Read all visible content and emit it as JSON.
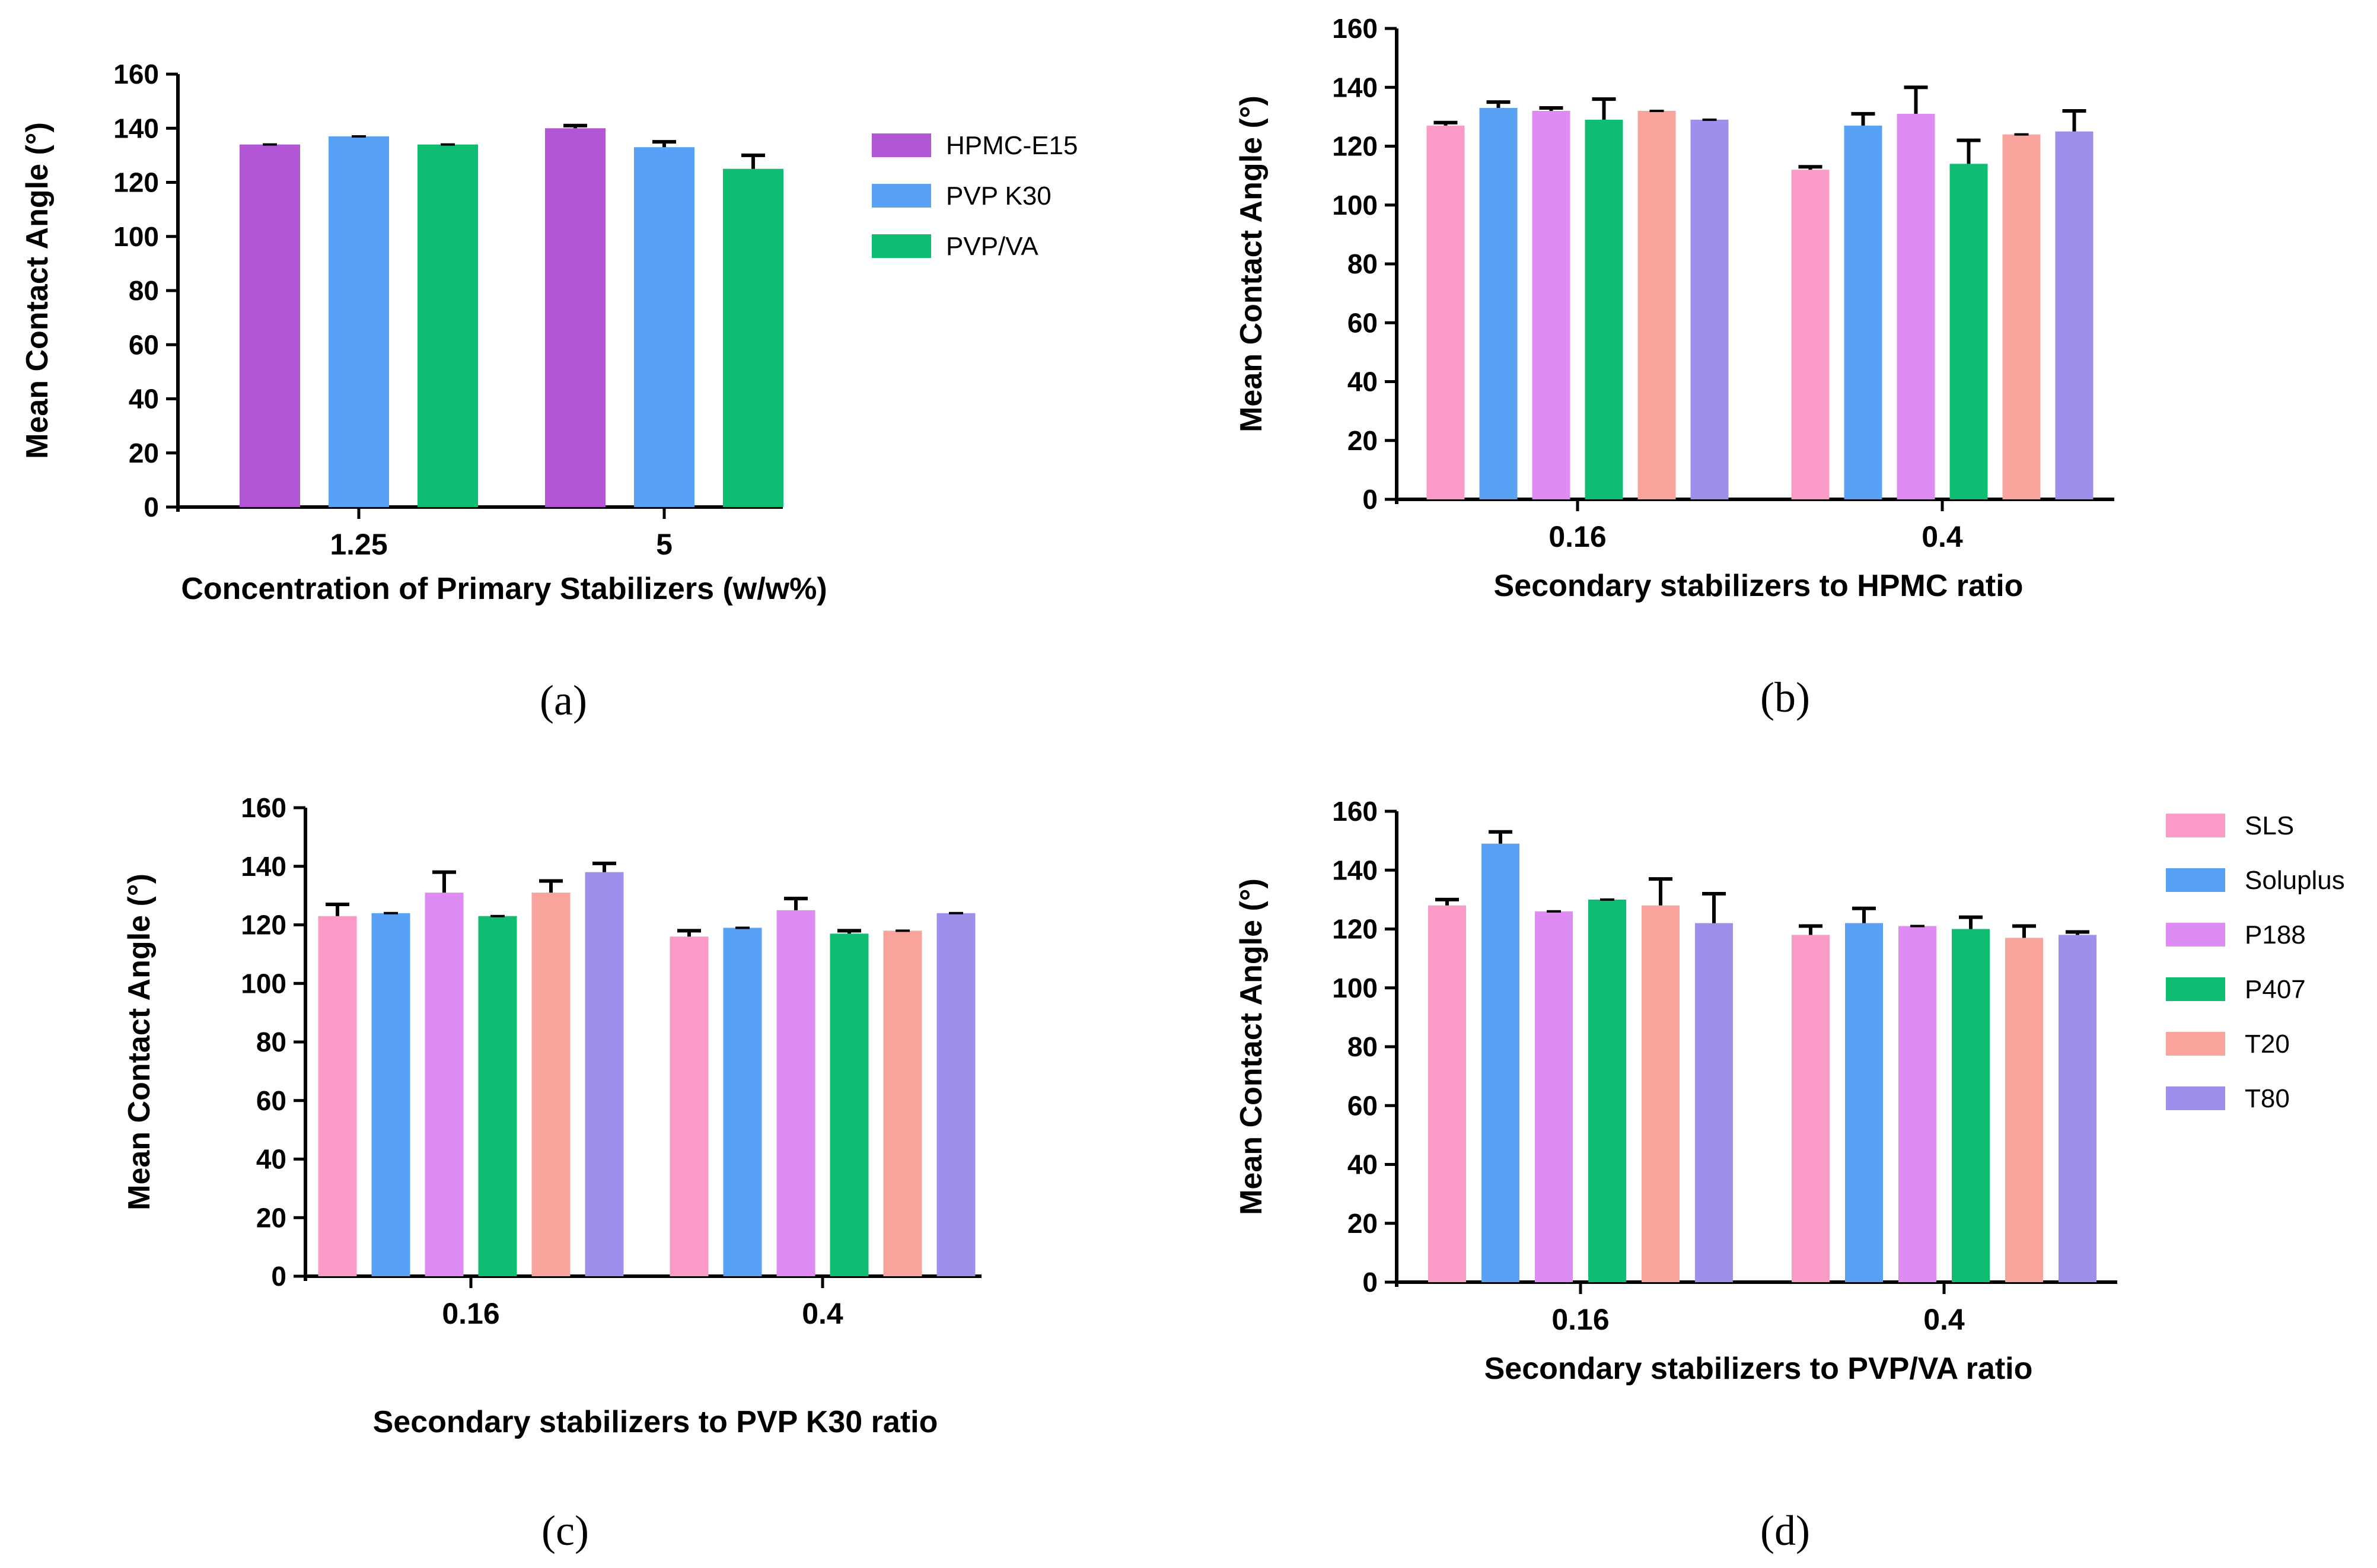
{
  "colors": {
    "HPMC-E15": "#b356d6",
    "PVP K30": "#58a1f5",
    "PVP/VA": "#0fbd72",
    "SLS": "#f99bc6",
    "Soluplus": "#58a1f5",
    "P188": "#de8cf4",
    "P407": "#0fbd72",
    "T20": "#f8a39c",
    "T80": "#9c90ea"
  },
  "chart_data": [
    {
      "id": "a",
      "type": "bar",
      "panel_label": "(a)",
      "title": "",
      "xlabel": "Concentration of Primary Stabilizers (w/w%)",
      "ylabel": "Mean Contact Angle (°)",
      "ylim": [
        0,
        160
      ],
      "yticks": [
        "0",
        "20",
        "40",
        "60",
        "80",
        "100",
        "120",
        "140",
        "160"
      ],
      "categories": [
        "1.25",
        "5"
      ],
      "legend": [
        "HPMC-E15",
        "PVP K30",
        "PVP/VA"
      ],
      "legend_position": "right",
      "series": [
        {
          "name": "HPMC-E15",
          "values": [
            134,
            140
          ],
          "errors": [
            0,
            1
          ]
        },
        {
          "name": "PVP K30",
          "values": [
            137,
            133
          ],
          "errors": [
            0,
            2
          ]
        },
        {
          "name": "PVP/VA",
          "values": [
            134,
            125
          ],
          "errors": [
            0,
            5
          ]
        }
      ]
    },
    {
      "id": "b",
      "type": "bar",
      "panel_label": "(b)",
      "title": "",
      "xlabel": "Secondary stabilizers to HPMC ratio",
      "ylabel": "Mean Contact Angle (°)",
      "ylim": [
        0,
        160
      ],
      "yticks": [
        "0",
        "20",
        "40",
        "60",
        "80",
        "100",
        "120",
        "140",
        "160"
      ],
      "categories": [
        "0.16",
        "0.4"
      ],
      "series": [
        {
          "name": "SLS",
          "values": [
            127,
            112
          ],
          "errors": [
            1,
            1
          ]
        },
        {
          "name": "Soluplus",
          "values": [
            133,
            127
          ],
          "errors": [
            2,
            4
          ]
        },
        {
          "name": "P188",
          "values": [
            132,
            131
          ],
          "errors": [
            1,
            9
          ]
        },
        {
          "name": "P407",
          "values": [
            129,
            114
          ],
          "errors": [
            7,
            8
          ]
        },
        {
          "name": "T20",
          "values": [
            132,
            124
          ],
          "errors": [
            0,
            0
          ]
        },
        {
          "name": "T80",
          "values": [
            129,
            125
          ],
          "errors": [
            0,
            7
          ]
        }
      ]
    },
    {
      "id": "c",
      "type": "bar",
      "panel_label": "(c)",
      "title": "",
      "xlabel": "Secondary stabilizers to PVP K30  ratio",
      "ylabel": "Mean Contact Angle (°)",
      "ylim": [
        0,
        160
      ],
      "yticks": [
        "0",
        "20",
        "40",
        "60",
        "80",
        "100",
        "120",
        "140",
        "160"
      ],
      "categories": [
        "0.16",
        "0.4"
      ],
      "series": [
        {
          "name": "SLS",
          "values": [
            123,
            116
          ],
          "errors": [
            4,
            2
          ]
        },
        {
          "name": "Soluplus",
          "values": [
            124,
            119
          ],
          "errors": [
            0,
            0
          ]
        },
        {
          "name": "P188",
          "values": [
            131,
            125
          ],
          "errors": [
            7,
            4
          ]
        },
        {
          "name": "P407",
          "values": [
            123,
            117
          ],
          "errors": [
            0,
            1
          ]
        },
        {
          "name": "T20",
          "values": [
            131,
            118
          ],
          "errors": [
            4,
            0
          ]
        },
        {
          "name": "T80",
          "values": [
            138,
            124
          ],
          "errors": [
            3,
            0
          ]
        }
      ]
    },
    {
      "id": "d",
      "type": "bar",
      "panel_label": "(d)",
      "title": "",
      "xlabel": "Secondary stabilizers to PVP/VA ratio",
      "ylabel": "Mean Contact Angle (°)",
      "ylim": [
        0,
        160
      ],
      "yticks": [
        "0",
        "20",
        "40",
        "60",
        "80",
        "100",
        "120",
        "140",
        "160"
      ],
      "categories": [
        "0.16",
        "0.4"
      ],
      "legend": [
        "SLS",
        "Soluplus",
        "P188",
        "P407",
        "T20",
        "T80"
      ],
      "legend_position": "right",
      "series": [
        {
          "name": "SLS",
          "values": [
            128,
            118
          ],
          "errors": [
            2,
            3
          ]
        },
        {
          "name": "Soluplus",
          "values": [
            149,
            122
          ],
          "errors": [
            4,
            5
          ]
        },
        {
          "name": "P188",
          "values": [
            126,
            121
          ],
          "errors": [
            0,
            0
          ]
        },
        {
          "name": "P407",
          "values": [
            130,
            120
          ],
          "errors": [
            0,
            4
          ]
        },
        {
          "name": "T20",
          "values": [
            128,
            117
          ],
          "errors": [
            9,
            4
          ]
        },
        {
          "name": "T80",
          "values": [
            122,
            118
          ],
          "errors": [
            10,
            1
          ]
        }
      ]
    }
  ]
}
